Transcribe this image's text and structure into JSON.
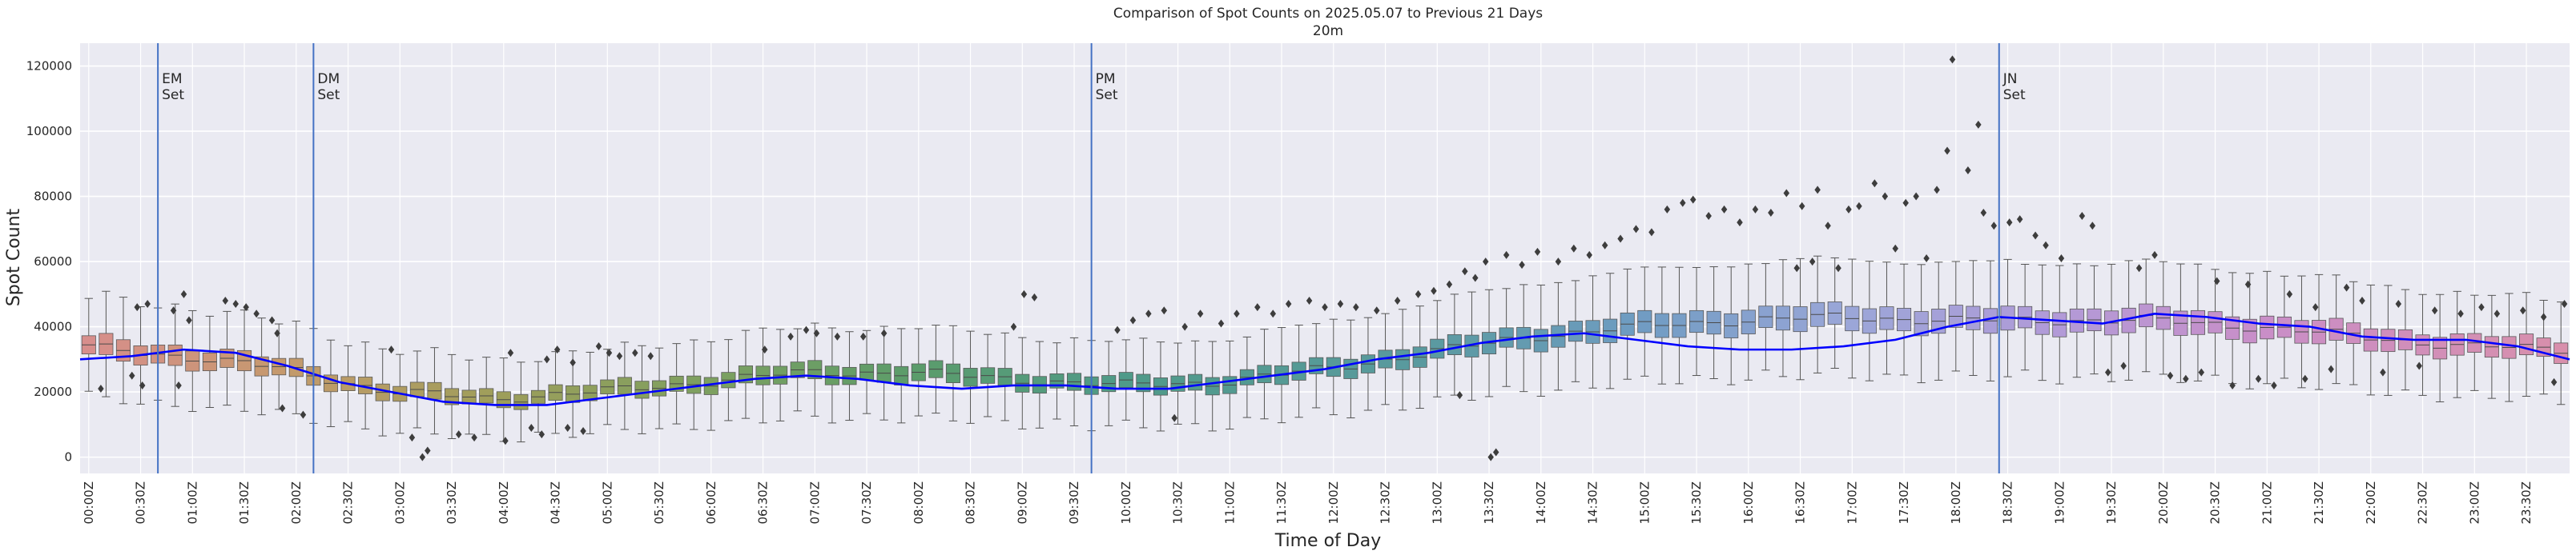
{
  "chart_data": {
    "type": "box",
    "title": "Comparison of Spot Counts on 2025.05.07 to Previous 21 Days",
    "subtitle": "20m",
    "xlabel": "Time of Day",
    "ylabel": "Spot Count",
    "ylim": [
      -5000,
      127000
    ],
    "yticks": [
      0,
      20000,
      40000,
      60000,
      80000,
      100000,
      120000
    ],
    "xticks": [
      "00:00Z",
      "00:30Z",
      "01:00Z",
      "01:30Z",
      "02:00Z",
      "02:30Z",
      "03:00Z",
      "03:30Z",
      "04:00Z",
      "04:30Z",
      "05:00Z",
      "05:30Z",
      "06:00Z",
      "06:30Z",
      "07:00Z",
      "07:30Z",
      "08:00Z",
      "08:30Z",
      "09:00Z",
      "09:30Z",
      "10:00Z",
      "10:30Z",
      "11:00Z",
      "11:30Z",
      "12:00Z",
      "12:30Z",
      "13:00Z",
      "13:30Z",
      "14:00Z",
      "14:30Z",
      "15:00Z",
      "15:30Z",
      "16:00Z",
      "16:30Z",
      "17:00Z",
      "17:30Z",
      "18:00Z",
      "18:30Z",
      "19:00Z",
      "19:30Z",
      "20:00Z",
      "20:30Z",
      "21:00Z",
      "21:30Z",
      "22:00Z",
      "22:30Z",
      "23:00Z",
      "23:30Z"
    ],
    "bins_per_hour": 6,
    "grid": true,
    "median_profile": {
      "hours": [
        0,
        1,
        2,
        3,
        4,
        5,
        6,
        7,
        8,
        9,
        10,
        11,
        12,
        13,
        14,
        15,
        16,
        17,
        18,
        19,
        20,
        21,
        22,
        23,
        24
      ],
      "values": [
        34000,
        31000,
        27000,
        20000,
        18000,
        20000,
        23000,
        26000,
        26000,
        24000,
        22000,
        23000,
        27000,
        32000,
        37000,
        40000,
        42000,
        43000,
        42000,
        42000,
        42000,
        40000,
        37000,
        34000,
        33000
      ]
    },
    "current_day_line": {
      "name": "2025.05.07",
      "color": "#0000ff",
      "hours": [
        0,
        0.5,
        1,
        1.5,
        2,
        2.5,
        3,
        3.5,
        4,
        4.5,
        5,
        5.5,
        6,
        6.5,
        7,
        7.5,
        8,
        8.5,
        9,
        9.5,
        10,
        10.5,
        11,
        11.5,
        12,
        12.5,
        13,
        13.5,
        14,
        14.5,
        15,
        15.5,
        16,
        16.5,
        17,
        17.5,
        18,
        18.5,
        19,
        19.5,
        20,
        20.5,
        21,
        21.5,
        22,
        22.5,
        23,
        23.5,
        24
      ],
      "values": [
        30000,
        31000,
        33000,
        32000,
        28000,
        23000,
        20000,
        17000,
        16000,
        16000,
        18000,
        20000,
        22000,
        24000,
        25000,
        24000,
        22000,
        21000,
        22000,
        22000,
        21000,
        21000,
        23000,
        25000,
        27000,
        30000,
        32000,
        35000,
        37000,
        38000,
        36000,
        34000,
        33000,
        33000,
        34000,
        36000,
        40000,
        43000,
        42000,
        41000,
        44000,
        43000,
        41000,
        40000,
        37000,
        36000,
        36000,
        34000,
        30000
      ]
    },
    "annotations": [
      {
        "hour": 0.75,
        "label_line1": "EM",
        "label_line2": "Set"
      },
      {
        "hour": 2.25,
        "label_line1": "DM",
        "label_line2": "Set"
      },
      {
        "hour": 9.75,
        "label_line1": "PM",
        "label_line2": "Set"
      },
      {
        "hour": 18.5,
        "label_line1": "JN",
        "label_line2": "Set"
      }
    ],
    "outliers": [
      {
        "hour": 0.2,
        "value": 21000
      },
      {
        "hour": 0.5,
        "value": 25000
      },
      {
        "hour": 0.55,
        "value": 46000
      },
      {
        "hour": 0.6,
        "value": 22000
      },
      {
        "hour": 0.65,
        "value": 47000
      },
      {
        "hour": 0.9,
        "value": 45000
      },
      {
        "hour": 0.95,
        "value": 22000
      },
      {
        "hour": 1.0,
        "value": 50000
      },
      {
        "hour": 1.05,
        "value": 42000
      },
      {
        "hour": 1.4,
        "value": 48000
      },
      {
        "hour": 1.5,
        "value": 47000
      },
      {
        "hour": 1.6,
        "value": 46000
      },
      {
        "hour": 1.7,
        "value": 44000
      },
      {
        "hour": 1.85,
        "value": 42000
      },
      {
        "hour": 1.9,
        "value": 38000
      },
      {
        "hour": 1.95,
        "value": 15000
      },
      {
        "hour": 2.15,
        "value": 13000
      },
      {
        "hour": 3.0,
        "value": 33000
      },
      {
        "hour": 3.2,
        "value": 6000
      },
      {
        "hour": 3.3,
        "value": 0
      },
      {
        "hour": 3.35,
        "value": 2000
      },
      {
        "hour": 3.65,
        "value": 7000
      },
      {
        "hour": 3.8,
        "value": 6000
      },
      {
        "hour": 4.1,
        "value": 5000
      },
      {
        "hour": 4.15,
        "value": 32000
      },
      {
        "hour": 4.35,
        "value": 9000
      },
      {
        "hour": 4.45,
        "value": 7000
      },
      {
        "hour": 4.5,
        "value": 30000
      },
      {
        "hour": 4.6,
        "value": 33000
      },
      {
        "hour": 4.7,
        "value": 9000
      },
      {
        "hour": 4.75,
        "value": 29000
      },
      {
        "hour": 4.85,
        "value": 8000
      },
      {
        "hour": 5.0,
        "value": 34000
      },
      {
        "hour": 5.1,
        "value": 32000
      },
      {
        "hour": 5.2,
        "value": 31000
      },
      {
        "hour": 5.35,
        "value": 32000
      },
      {
        "hour": 5.5,
        "value": 31000
      },
      {
        "hour": 6.6,
        "value": 33000
      },
      {
        "hour": 6.85,
        "value": 37000
      },
      {
        "hour": 7.0,
        "value": 39000
      },
      {
        "hour": 7.1,
        "value": 38000
      },
      {
        "hour": 7.3,
        "value": 37000
      },
      {
        "hour": 7.55,
        "value": 37000
      },
      {
        "hour": 7.75,
        "value": 38000
      },
      {
        "hour": 9.0,
        "value": 40000
      },
      {
        "hour": 9.1,
        "value": 50000
      },
      {
        "hour": 9.2,
        "value": 49000
      },
      {
        "hour": 10.0,
        "value": 39000
      },
      {
        "hour": 10.15,
        "value": 42000
      },
      {
        "hour": 10.3,
        "value": 44000
      },
      {
        "hour": 10.45,
        "value": 45000
      },
      {
        "hour": 10.55,
        "value": 12000
      },
      {
        "hour": 10.65,
        "value": 40000
      },
      {
        "hour": 10.8,
        "value": 44000
      },
      {
        "hour": 11.0,
        "value": 41000
      },
      {
        "hour": 11.15,
        "value": 44000
      },
      {
        "hour": 11.35,
        "value": 46000
      },
      {
        "hour": 11.5,
        "value": 44000
      },
      {
        "hour": 11.65,
        "value": 47000
      },
      {
        "hour": 11.85,
        "value": 48000
      },
      {
        "hour": 12.0,
        "value": 46000
      },
      {
        "hour": 12.15,
        "value": 47000
      },
      {
        "hour": 12.3,
        "value": 46000
      },
      {
        "hour": 12.5,
        "value": 45000
      },
      {
        "hour": 12.7,
        "value": 48000
      },
      {
        "hour": 12.9,
        "value": 50000
      },
      {
        "hour": 13.05,
        "value": 51000
      },
      {
        "hour": 13.2,
        "value": 53000
      },
      {
        "hour": 13.3,
        "value": 19000
      },
      {
        "hour": 13.35,
        "value": 57000
      },
      {
        "hour": 13.45,
        "value": 55000
      },
      {
        "hour": 13.55,
        "value": 60000
      },
      {
        "hour": 13.6,
        "value": 0
      },
      {
        "hour": 13.65,
        "value": 1500
      },
      {
        "hour": 13.75,
        "value": 62000
      },
      {
        "hour": 13.9,
        "value": 59000
      },
      {
        "hour": 14.05,
        "value": 63000
      },
      {
        "hour": 14.25,
        "value": 60000
      },
      {
        "hour": 14.4,
        "value": 64000
      },
      {
        "hour": 14.55,
        "value": 62000
      },
      {
        "hour": 14.7,
        "value": 65000
      },
      {
        "hour": 14.85,
        "value": 67000
      },
      {
        "hour": 15.0,
        "value": 70000
      },
      {
        "hour": 15.15,
        "value": 69000
      },
      {
        "hour": 15.3,
        "value": 76000
      },
      {
        "hour": 15.45,
        "value": 78000
      },
      {
        "hour": 15.55,
        "value": 79000
      },
      {
        "hour": 15.7,
        "value": 74000
      },
      {
        "hour": 15.85,
        "value": 76000
      },
      {
        "hour": 16.0,
        "value": 72000
      },
      {
        "hour": 16.15,
        "value": 76000
      },
      {
        "hour": 16.3,
        "value": 75000
      },
      {
        "hour": 16.45,
        "value": 81000
      },
      {
        "hour": 16.55,
        "value": 58000
      },
      {
        "hour": 16.6,
        "value": 77000
      },
      {
        "hour": 16.7,
        "value": 60000
      },
      {
        "hour": 16.75,
        "value": 82000
      },
      {
        "hour": 16.85,
        "value": 71000
      },
      {
        "hour": 16.95,
        "value": 58000
      },
      {
        "hour": 17.05,
        "value": 76000
      },
      {
        "hour": 17.15,
        "value": 77000
      },
      {
        "hour": 17.3,
        "value": 84000
      },
      {
        "hour": 17.4,
        "value": 80000
      },
      {
        "hour": 17.5,
        "value": 64000
      },
      {
        "hour": 17.6,
        "value": 78000
      },
      {
        "hour": 17.7,
        "value": 80000
      },
      {
        "hour": 17.8,
        "value": 61000
      },
      {
        "hour": 17.9,
        "value": 82000
      },
      {
        "hour": 18.0,
        "value": 94000
      },
      {
        "hour": 18.05,
        "value": 122000
      },
      {
        "hour": 18.2,
        "value": 88000
      },
      {
        "hour": 18.3,
        "value": 102000
      },
      {
        "hour": 18.35,
        "value": 75000
      },
      {
        "hour": 18.45,
        "value": 71000
      },
      {
        "hour": 18.6,
        "value": 72000
      },
      {
        "hour": 18.7,
        "value": 73000
      },
      {
        "hour": 18.85,
        "value": 68000
      },
      {
        "hour": 18.95,
        "value": 65000
      },
      {
        "hour": 19.1,
        "value": 61000
      },
      {
        "hour": 19.3,
        "value": 74000
      },
      {
        "hour": 19.4,
        "value": 71000
      },
      {
        "hour": 19.55,
        "value": 26000
      },
      {
        "hour": 19.7,
        "value": 28000
      },
      {
        "hour": 19.85,
        "value": 58000
      },
      {
        "hour": 20.0,
        "value": 62000
      },
      {
        "hour": 20.15,
        "value": 25000
      },
      {
        "hour": 20.3,
        "value": 24000
      },
      {
        "hour": 20.45,
        "value": 26000
      },
      {
        "hour": 20.6,
        "value": 54000
      },
      {
        "hour": 20.75,
        "value": 22000
      },
      {
        "hour": 20.9,
        "value": 53000
      },
      {
        "hour": 21.0,
        "value": 24000
      },
      {
        "hour": 21.15,
        "value": 22000
      },
      {
        "hour": 21.3,
        "value": 50000
      },
      {
        "hour": 21.45,
        "value": 24000
      },
      {
        "hour": 21.55,
        "value": 46000
      },
      {
        "hour": 21.7,
        "value": 27000
      },
      {
        "hour": 21.85,
        "value": 52000
      },
      {
        "hour": 22.0,
        "value": 48000
      },
      {
        "hour": 22.2,
        "value": 26000
      },
      {
        "hour": 22.35,
        "value": 47000
      },
      {
        "hour": 22.55,
        "value": 28000
      },
      {
        "hour": 22.7,
        "value": 45000
      },
      {
        "hour": 22.95,
        "value": 44000
      },
      {
        "hour": 23.15,
        "value": 46000
      },
      {
        "hour": 23.3,
        "value": 44000
      },
      {
        "hour": 23.55,
        "value": 45000
      },
      {
        "hour": 23.75,
        "value": 43000
      },
      {
        "hour": 23.85,
        "value": 23000
      },
      {
        "hour": 23.95,
        "value": 47000
      }
    ],
    "colors": {
      "plot_background": "#eaeaf2",
      "grid": "#ffffff",
      "whisker": "#555555",
      "vline": "#4472c4",
      "outlier": "#3d3d3d",
      "text": "#262626",
      "palette_stops": [
        {
          "hour": 0,
          "color": "#d88d8d"
        },
        {
          "hour": 2,
          "color": "#c49a6c"
        },
        {
          "hour": 4,
          "color": "#9e9e5a"
        },
        {
          "hour": 6,
          "color": "#7ea060"
        },
        {
          "hour": 8,
          "color": "#5c9c6a"
        },
        {
          "hour": 10,
          "color": "#4f9a88"
        },
        {
          "hour": 13,
          "color": "#5a9aa0"
        },
        {
          "hour": 15,
          "color": "#6f9cc2"
        },
        {
          "hour": 17,
          "color": "#9aa6d8"
        },
        {
          "hour": 19,
          "color": "#b19ad8"
        },
        {
          "hour": 21,
          "color": "#c98ec8"
        },
        {
          "hour": 24,
          "color": "#d88fab"
        }
      ]
    }
  }
}
